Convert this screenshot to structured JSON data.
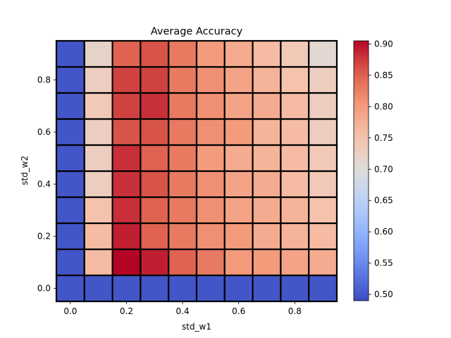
{
  "chart_data": {
    "type": "heatmap",
    "title": "Average Accuracy",
    "xlabel": "std_w1",
    "ylabel": "std_w2",
    "x_values": [
      0.0,
      0.1,
      0.2,
      0.3,
      0.4,
      0.5,
      0.6,
      0.7,
      0.8,
      0.9
    ],
    "y_values": [
      0.0,
      0.1,
      0.2,
      0.3,
      0.4,
      0.5,
      0.6,
      0.7,
      0.8,
      0.9
    ],
    "x_tick_labels": [
      "0.0",
      "0.2",
      "0.4",
      "0.6",
      "0.8"
    ],
    "y_tick_labels": [
      "0.0",
      "0.2",
      "0.4",
      "0.6",
      "0.8"
    ],
    "colorbar_ticks": [
      "0.50",
      "0.55",
      "0.60",
      "0.65",
      "0.70",
      "0.75",
      "0.80",
      "0.85",
      "0.90"
    ],
    "colormap": "coolwarm",
    "vmin": 0.49,
    "vmax": 0.905,
    "matrix_rows_from_bottom": [
      [
        0.5,
        0.5,
        0.5,
        0.5,
        0.5,
        0.5,
        0.5,
        0.5,
        0.5,
        0.5
      ],
      [
        0.5,
        0.76,
        0.905,
        0.89,
        0.85,
        0.83,
        0.8,
        0.8,
        0.79,
        0.78
      ],
      [
        0.5,
        0.76,
        0.89,
        0.85,
        0.83,
        0.81,
        0.8,
        0.78,
        0.77,
        0.76
      ],
      [
        0.5,
        0.75,
        0.88,
        0.85,
        0.83,
        0.81,
        0.79,
        0.78,
        0.77,
        0.75
      ],
      [
        0.5,
        0.73,
        0.88,
        0.86,
        0.83,
        0.81,
        0.79,
        0.78,
        0.76,
        0.74
      ],
      [
        0.5,
        0.73,
        0.88,
        0.85,
        0.83,
        0.8,
        0.78,
        0.77,
        0.76,
        0.74
      ],
      [
        0.5,
        0.73,
        0.86,
        0.86,
        0.83,
        0.81,
        0.8,
        0.77,
        0.76,
        0.73
      ],
      [
        0.5,
        0.74,
        0.87,
        0.88,
        0.83,
        0.81,
        0.79,
        0.78,
        0.76,
        0.73
      ],
      [
        0.5,
        0.73,
        0.87,
        0.87,
        0.83,
        0.81,
        0.79,
        0.77,
        0.75,
        0.73
      ],
      [
        0.5,
        0.72,
        0.85,
        0.86,
        0.83,
        0.8,
        0.78,
        0.76,
        0.74,
        0.71
      ]
    ]
  }
}
